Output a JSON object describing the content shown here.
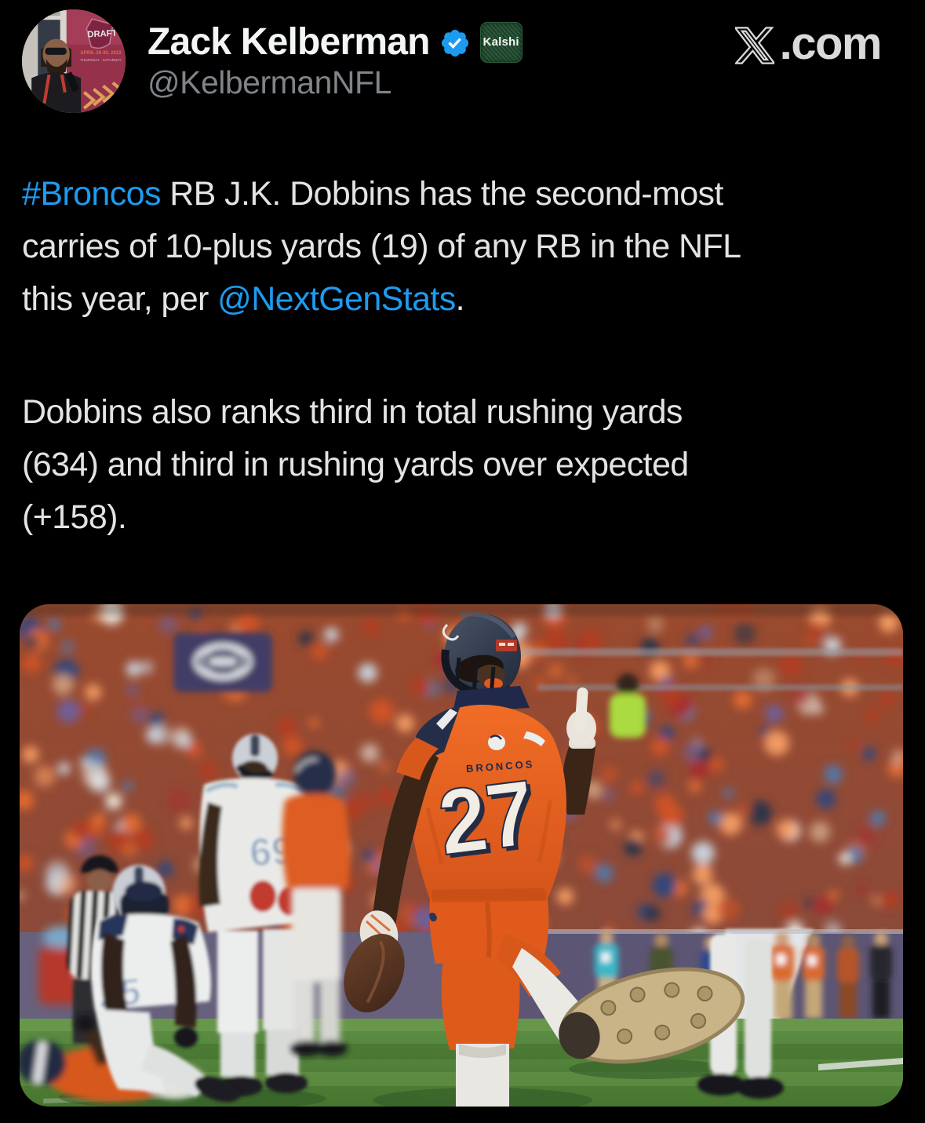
{
  "header": {
    "display_name": "Zack Kelberman",
    "handle": "@KelbermanNFL",
    "verified_badge": "verified-check",
    "affiliate_badge_label": "Kalshi",
    "site": {
      "logo": "X",
      "suffix": ".com"
    },
    "avatar_banner": {
      "title": "DRAFT",
      "date_line": "APRIL 28-30, 2022",
      "days_line": "THURSDAY - SATURDAY"
    }
  },
  "tweet": {
    "paragraphs": [
      {
        "segments": [
          {
            "text": "#Broncos",
            "link": true
          },
          {
            "text": " RB J.K. Dobbins has the second-most\ncarries of 10-plus yards (19) of any RB in the NFL\nthis year, per ",
            "link": false
          },
          {
            "text": "@NextGenStats",
            "link": true
          },
          {
            "text": ".",
            "link": false
          }
        ]
      },
      {
        "segments": [
          {
            "text": "Dobbins also ranks third in total rushing yards\n(634) and third in rushing yards over expected\n(+158).",
            "link": false
          }
        ]
      }
    ]
  },
  "photo": {
    "main_player": {
      "team_wordmark": "BRONCOS",
      "number": "27"
    },
    "titans_lineman_number": "69",
    "titans_kneeling_number": "25",
    "colors": {
      "broncos_orange": "#e8601f",
      "helmet_navy": "#2a3246",
      "titans_number_blue": "#8ba0bc",
      "field_green": "#55853f",
      "link_blue": "#1d9bf0",
      "crowd_palette": [
        "#cf5226",
        "#e06a33",
        "#b03c20",
        "#f29a62",
        "#e8e4da",
        "#c8d0da",
        "#5577a8",
        "#33477c",
        "#6f5f96",
        "#a62f2f",
        "#2c3548",
        "#c89878"
      ]
    }
  }
}
